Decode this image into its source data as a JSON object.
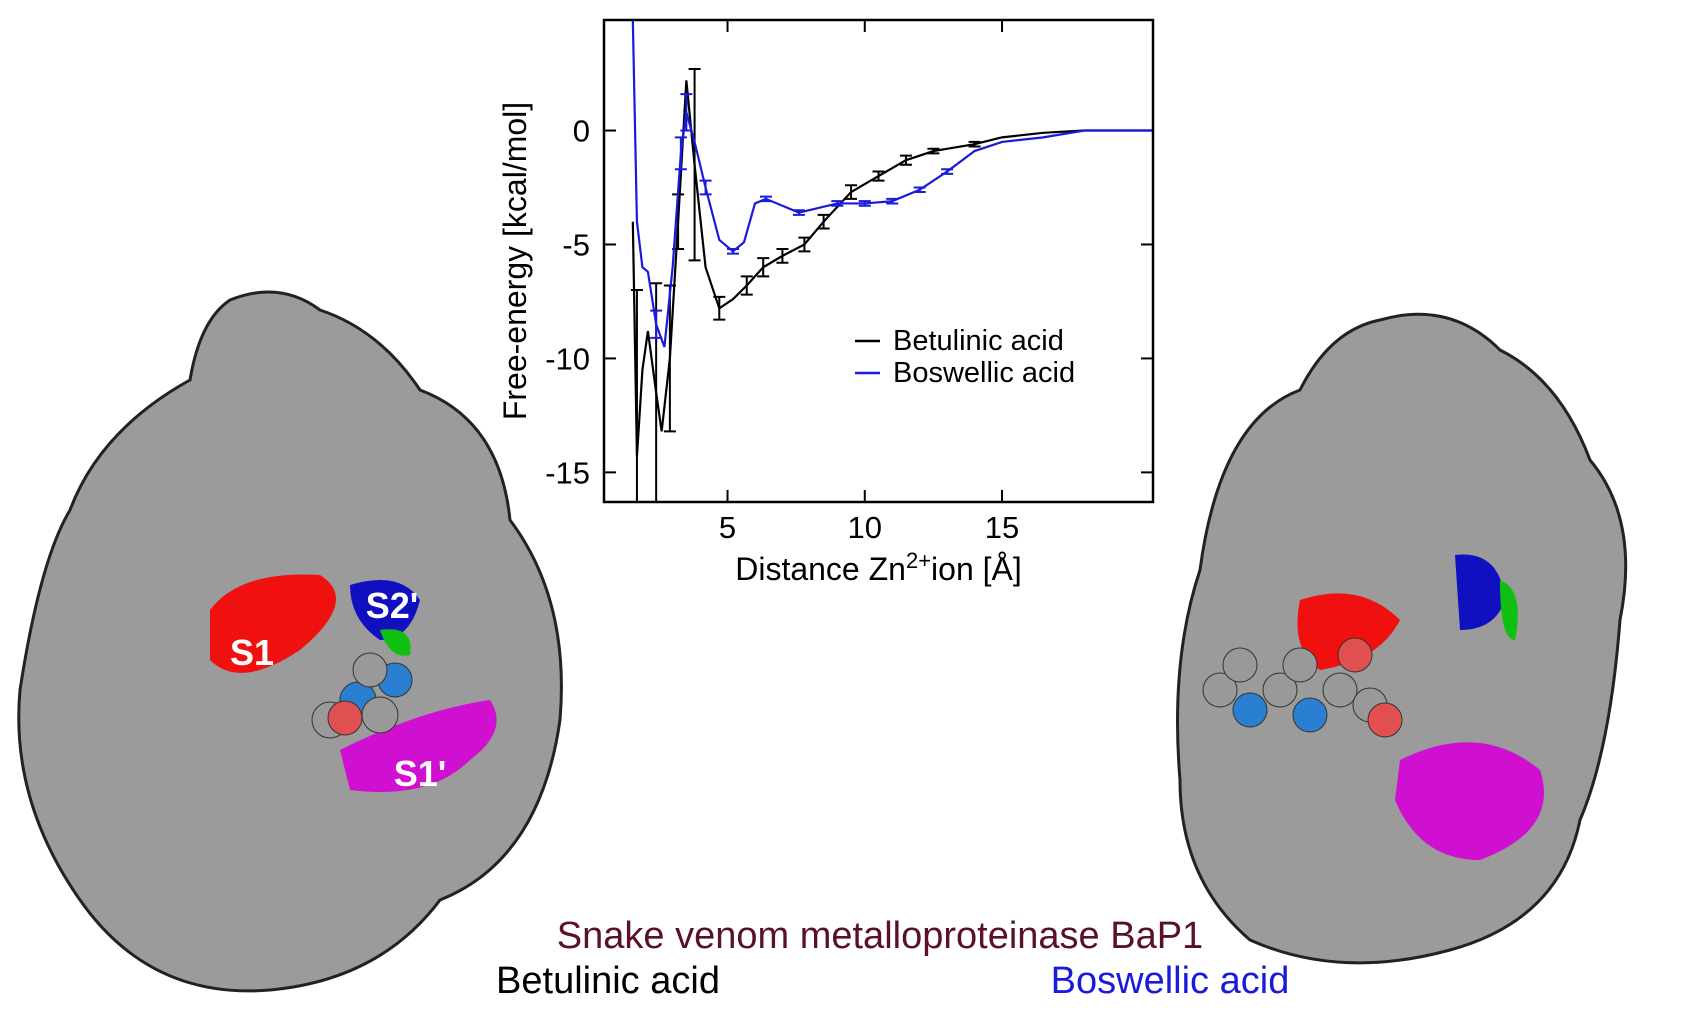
{
  "chart_data": {
    "type": "line",
    "x_label": [
      "Distance Zn",
      "2+",
      "ion [Å]"
    ],
    "y_label": "Free-energy [kcal/mol]",
    "xlim": [
      0.5,
      20.5
    ],
    "ylim": [
      -16.3,
      4.85
    ],
    "xticks": [
      5,
      10,
      15
    ],
    "yticks": [
      -15,
      -10,
      -5,
      0
    ],
    "legend": "center-right",
    "series": [
      {
        "name": "Betulinic acid",
        "color": "#000000",
        "x": [
          1.55,
          1.7,
          1.9,
          2.1,
          2.4,
          2.6,
          2.9,
          3.2,
          3.5,
          3.8,
          4.2,
          4.7,
          5.2,
          5.7,
          6.3,
          7.0,
          7.8,
          8.5,
          9.5,
          10.5,
          11.5,
          12.5,
          14.0,
          15.0,
          16.5,
          18.0,
          20.5
        ],
        "values": [
          -4,
          -14.3,
          -10.5,
          -8.8,
          -11.5,
          -13.2,
          -10,
          -4,
          2.2,
          -1.5,
          -6,
          -7.8,
          -7.4,
          -6.8,
          -6.0,
          -5.5,
          -5.0,
          -4.0,
          -2.7,
          -2.0,
          -1.3,
          -0.9,
          -0.6,
          -0.3,
          -0.1,
          0,
          0
        ],
        "errors": [
          null,
          7.3,
          null,
          null,
          4.8,
          null,
          3.2,
          1.2,
          null,
          4.2,
          null,
          0.5,
          null,
          0.4,
          0.4,
          0.3,
          0.3,
          0.3,
          0.3,
          0.2,
          0.2,
          0.1,
          0.1,
          null,
          null,
          null,
          null
        ]
      },
      {
        "name": "Boswellic acid",
        "color": "#1a1adb",
        "x": [
          1.55,
          1.7,
          1.9,
          2.1,
          2.4,
          2.7,
          3.0,
          3.3,
          3.5,
          3.8,
          4.2,
          4.7,
          5.2,
          5.6,
          6.0,
          6.4,
          7.0,
          7.6,
          8.3,
          9.0,
          10.0,
          11.0,
          12.0,
          13.0,
          14.0,
          15.0,
          16.5,
          18.0,
          20.5
        ],
        "values": [
          4.85,
          -4,
          -6,
          -6.2,
          -8.5,
          -9.5,
          -6,
          -1,
          0.8,
          -0.5,
          -2.5,
          -4.8,
          -5.3,
          -4.9,
          -3.2,
          -3.0,
          -3.3,
          -3.6,
          -3.4,
          -3.2,
          -3.2,
          -3.1,
          -2.6,
          -1.8,
          -0.9,
          -0.5,
          -0.3,
          0,
          0
        ],
        "errors": [
          null,
          null,
          null,
          null,
          0.6,
          null,
          null,
          0.7,
          0.8,
          null,
          0.3,
          null,
          0.1,
          null,
          null,
          0.1,
          null,
          0.1,
          null,
          0.1,
          0.1,
          0.1,
          0.1,
          0.1,
          null,
          null,
          null,
          null,
          null
        ]
      }
    ]
  },
  "figure": {
    "caption": "Snake venom metalloproteinase BaP1",
    "left_label": "Betulinic acid",
    "right_label": "Boswellic acid",
    "sites": [
      "S1",
      "S2'",
      "S1'"
    ]
  }
}
